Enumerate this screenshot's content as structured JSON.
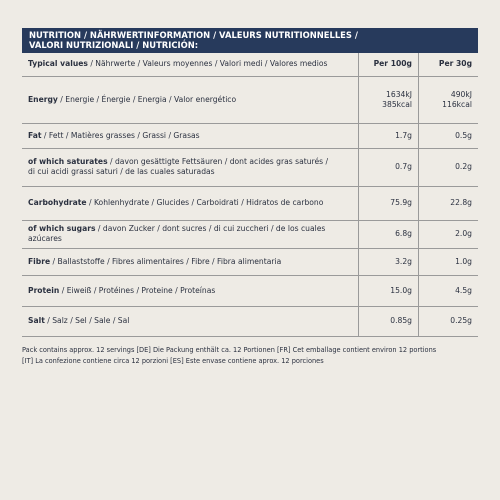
{
  "header": {
    "title_lines": [
      "NUTRITION / NÄHRWERTINFORMATION / VALEURS NUTRITIONNELLES /",
      "VALORI NUTRIZIONALI / NUTRICIÓN:"
    ]
  },
  "table": {
    "columns": {
      "label": {
        "bold": "Typical values",
        "rest": [
          "/ Nährwerte / Valeurs moyennes / Valori medi / Valores medios"
        ]
      },
      "per100": "Per 100g",
      "per30": "Per 30g"
    },
    "rows": [
      {
        "bold": "Energy",
        "rest": [
          "/ Energie / Énergie / Energia / Valor energético"
        ],
        "per100": [
          "1634kJ",
          "385kcal"
        ],
        "per30": [
          "490kJ",
          "116kcal"
        ]
      },
      {
        "bold": "Fat",
        "rest": [
          "/ Fett / Matières grasses / Grassi / Grasas"
        ],
        "per100": [
          "1.7g"
        ],
        "per30": [
          "0.5g"
        ]
      },
      {
        "bold": "of which saturates",
        "rest": [
          "/ davon gesättigte Fettsäuren / dont acides gras saturés /",
          "di cui acidi grassi saturi / de las cuales saturadas"
        ],
        "per100": [
          "0.7g"
        ],
        "per30": [
          "0.2g"
        ]
      },
      {
        "bold": "Carbohydrate",
        "rest": [
          "/ Kohlenhydrate / Glucides / Carboidrati / Hidratos de carbono"
        ],
        "per100": [
          "75.9g"
        ],
        "per30": [
          "22.8g"
        ]
      },
      {
        "bold": "of which sugars",
        "rest": [
          "/ davon Zucker / dont sucres / di cui zuccheri / de los cuales azúcares"
        ],
        "per100": [
          "6.8g"
        ],
        "per30": [
          "2.0g"
        ]
      },
      {
        "bold": "Fibre",
        "rest": [
          "/ Ballaststoffe / Fibres alimentaires / Fibre / Fibra alimentaria"
        ],
        "per100": [
          "3.2g"
        ],
        "per30": [
          "1.0g"
        ]
      },
      {
        "bold": "Protein",
        "rest": [
          "/ Eiweiß / Protéines / Proteine / Proteínas"
        ],
        "per100": [
          "15.0g"
        ],
        "per30": [
          "4.5g"
        ]
      },
      {
        "bold": "Salt",
        "rest": [
          "/ Salz / Sel / Sale / Sal"
        ],
        "per100": [
          "0.85g"
        ],
        "per30": [
          "0.25g"
        ]
      }
    ]
  },
  "footer": {
    "lines": [
      "Pack contains approx. 12 servings [DE] Die Packung enthält ca. 12 Portionen [FR] Cet emballage contient environ 12 portions",
      "[IT] La confezione contiene circa 12 porzioni [ES] Este envase contiene aprox. 12 porciones"
    ]
  }
}
